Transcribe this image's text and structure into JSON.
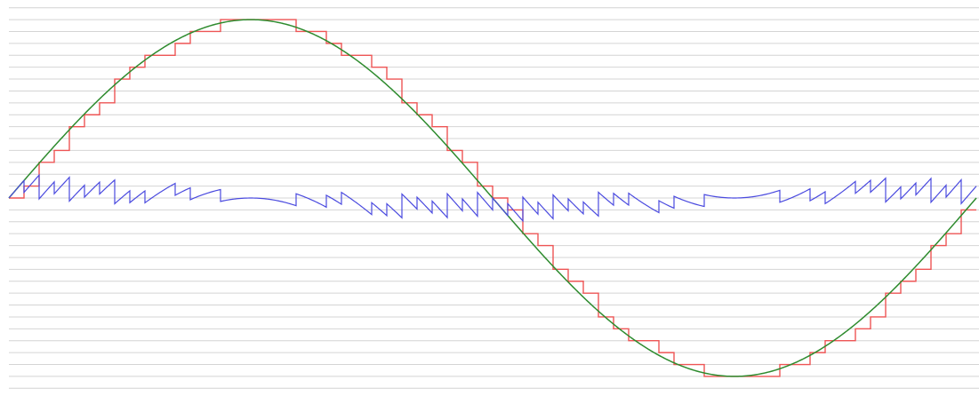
{
  "chart_data": {
    "type": "line",
    "grid": "horizontal",
    "xlim": [
      0,
      1
    ],
    "ylim": [
      -16.5,
      16.5
    ],
    "steps_per_cycle": 64,
    "series": [
      {
        "kind": "sine",
        "color": "#2e8b2e",
        "amplitude": 15
      },
      {
        "kind": "quantized",
        "color": "#ee5555",
        "levels": [
          -15,
          -14,
          -13,
          -12,
          -11,
          -10,
          -9,
          -8,
          -7,
          -6,
          -5,
          -4,
          -3,
          -2,
          -1,
          0,
          1,
          2,
          3,
          4,
          5,
          6,
          7,
          8,
          9,
          10,
          11,
          12,
          13,
          14,
          15
        ]
      },
      {
        "kind": "quantization-error",
        "color": "#4a4adf"
      }
    ]
  }
}
